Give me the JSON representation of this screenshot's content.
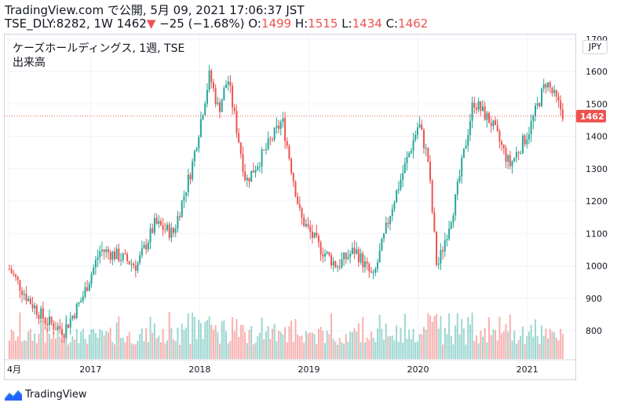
{
  "header": {
    "source": "TradingView.com で公開, 5月 09, 2021 17:06:37 JST",
    "symbol": "TSE_DLY:8282, 1W 1462",
    "change": "−25 (−1.68%)",
    "o_label": "O:",
    "o_value": "1499",
    "h_label": "H:",
    "h_value": "1515",
    "l_label": "L:",
    "l_value": "1434",
    "c_label": "C:",
    "c_value": "1462"
  },
  "pane": {
    "title": "ケーズホールディングス, 1週, TSE",
    "volume_label": "出来高",
    "currency": "JPY"
  },
  "footer": {
    "brand": "TradingView"
  },
  "colors": {
    "up": "#26a69a",
    "down": "#ef5350",
    "grid": "#f0f3fa",
    "text": "#131722"
  },
  "chart_data": {
    "type": "candlestick",
    "y_ticks": [
      800,
      900,
      1000,
      1100,
      1200,
      1300,
      1400,
      1500,
      1600,
      1700
    ],
    "x_ticks": [
      "4月",
      "2017",
      "2018",
      "2019",
      "2020",
      "2021"
    ],
    "x_tick_values": [
      "2016-04",
      "2017-01",
      "2018-01",
      "2019-01",
      "2020-01",
      "2021-01"
    ],
    "last_price": 1462,
    "last_price_label": "1462",
    "series": [
      {
        "date": "2016-04",
        "price": 990
      },
      {
        "date": "2016-06",
        "price": 900
      },
      {
        "date": "2016-08",
        "price": 830
      },
      {
        "date": "2016-10",
        "price": 800
      },
      {
        "date": "2016-12",
        "price": 900
      },
      {
        "date": "2017-02",
        "price": 1050
      },
      {
        "date": "2017-04",
        "price": 1030
      },
      {
        "date": "2017-06",
        "price": 1000
      },
      {
        "date": "2017-08",
        "price": 1130
      },
      {
        "date": "2017-10",
        "price": 1100
      },
      {
        "date": "2017-12",
        "price": 1300
      },
      {
        "date": "2018-02",
        "price": 1590
      },
      {
        "date": "2018-03",
        "price": 1480
      },
      {
        "date": "2018-04",
        "price": 1580
      },
      {
        "date": "2018-06",
        "price": 1260
      },
      {
        "date": "2018-08",
        "price": 1350
      },
      {
        "date": "2018-10",
        "price": 1450
      },
      {
        "date": "2018-12",
        "price": 1150
      },
      {
        "date": "2019-02",
        "price": 1060
      },
      {
        "date": "2019-04",
        "price": 1000
      },
      {
        "date": "2019-06",
        "price": 1050
      },
      {
        "date": "2019-08",
        "price": 960
      },
      {
        "date": "2019-10",
        "price": 1180
      },
      {
        "date": "2020-01",
        "price": 1440
      },
      {
        "date": "2020-02",
        "price": 1330
      },
      {
        "date": "2020-03",
        "price": 990
      },
      {
        "date": "2020-05",
        "price": 1200
      },
      {
        "date": "2020-07",
        "price": 1510
      },
      {
        "date": "2020-09",
        "price": 1440
      },
      {
        "date": "2020-11",
        "price": 1310
      },
      {
        "date": "2021-01",
        "price": 1410
      },
      {
        "date": "2021-03",
        "price": 1570
      },
      {
        "date": "2021-05",
        "price": 1462
      }
    ]
  }
}
